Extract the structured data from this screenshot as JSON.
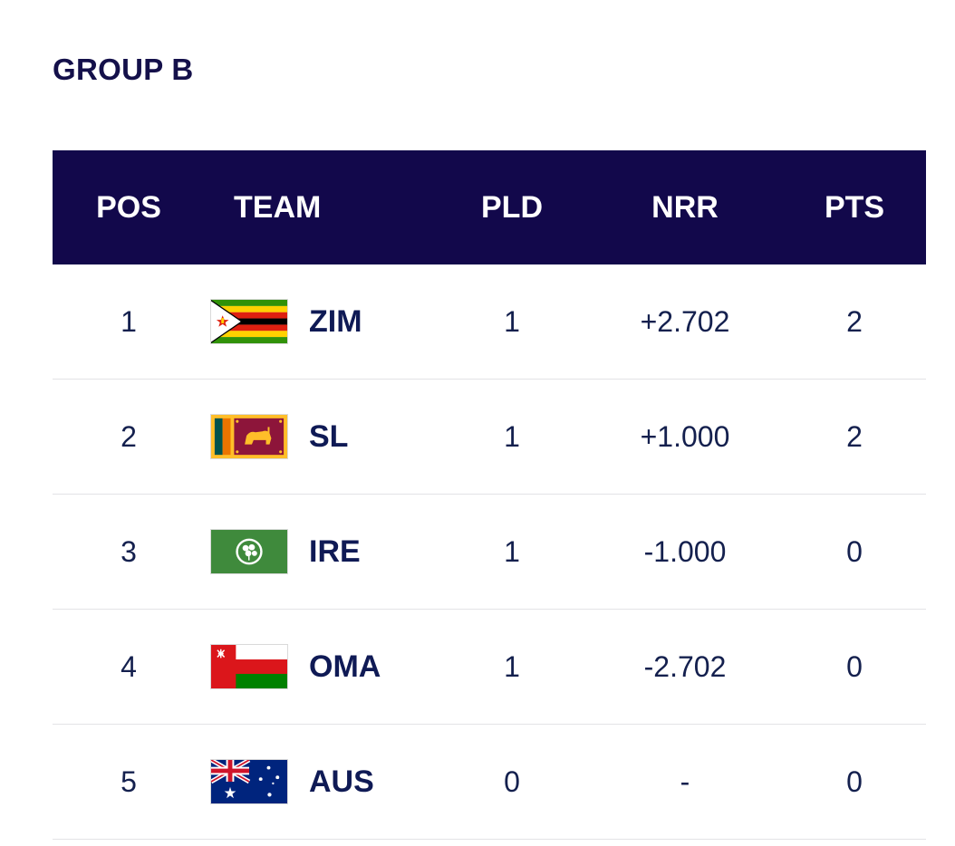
{
  "group_title": "GROUP B",
  "columns": {
    "pos": "POS",
    "team": "TEAM",
    "pld": "PLD",
    "nrr": "NRR",
    "pts": "PTS"
  },
  "rows": [
    {
      "pos": "1",
      "team": "ZIM",
      "flag_icon": "zimbabwe-flag-icon",
      "pld": "1",
      "nrr": "+2.702",
      "pts": "2"
    },
    {
      "pos": "2",
      "team": "SL",
      "flag_icon": "sri-lanka-flag-icon",
      "pld": "1",
      "nrr": "+1.000",
      "pts": "2"
    },
    {
      "pos": "3",
      "team": "IRE",
      "flag_icon": "ireland-cricket-flag-icon",
      "pld": "1",
      "nrr": "-1.000",
      "pts": "0"
    },
    {
      "pos": "4",
      "team": "OMA",
      "flag_icon": "oman-flag-icon",
      "pld": "1",
      "nrr": "-2.702",
      "pts": "0"
    },
    {
      "pos": "5",
      "team": "AUS",
      "flag_icon": "australia-flag-icon",
      "pld": "0",
      "nrr": "-",
      "pts": "0"
    }
  ],
  "colors": {
    "header_bg": "#12084b",
    "text": "#14204e",
    "divider": "#e3e3e6"
  }
}
